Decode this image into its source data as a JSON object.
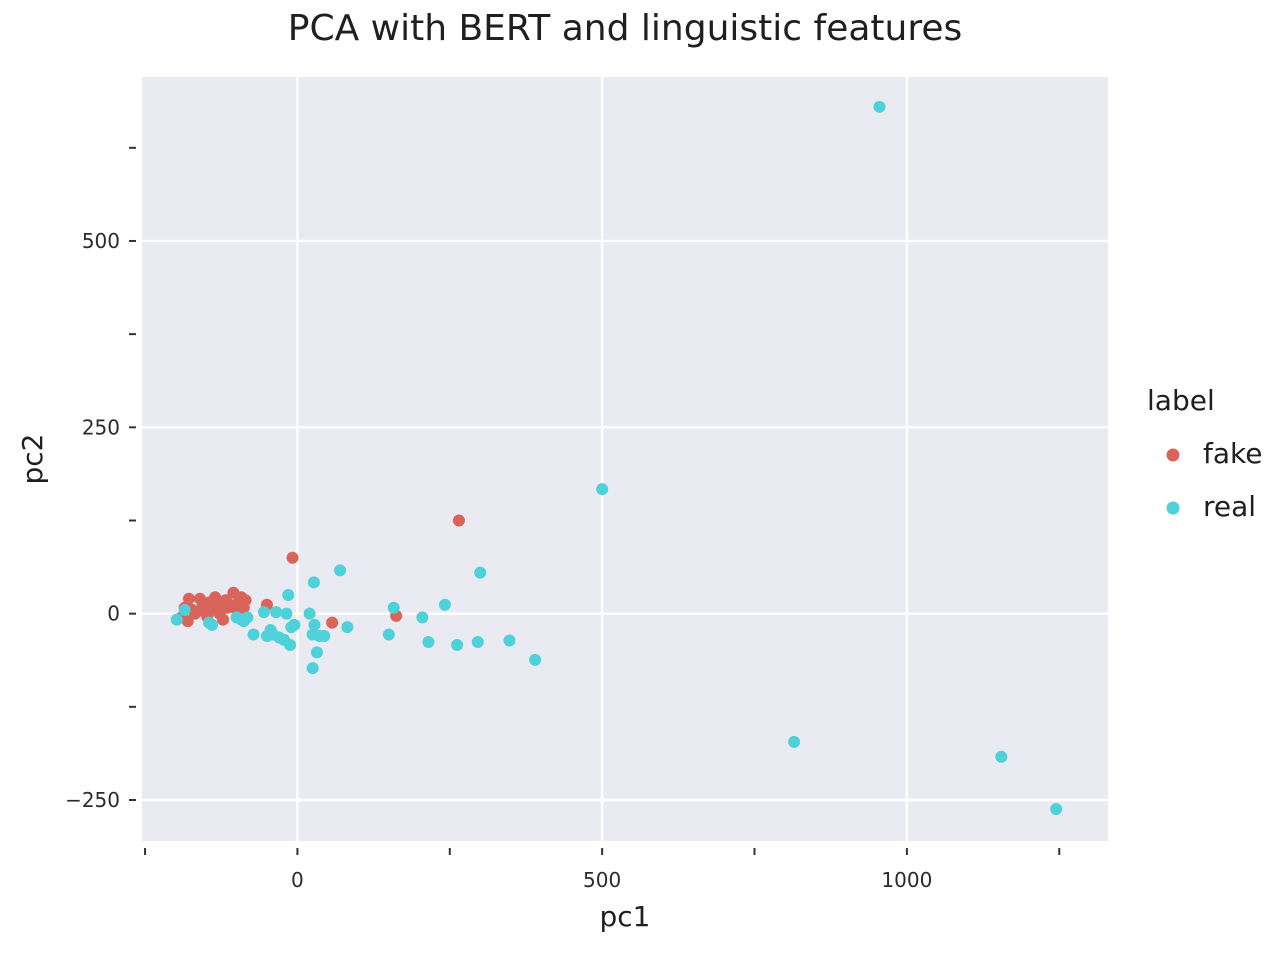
{
  "chart_data": {
    "type": "scatter",
    "title": "PCA with BERT and linguistic features",
    "xlabel": "pc1",
    "ylabel": "pc2",
    "xlim": [
      -255,
      1330
    ],
    "ylim": [
      -305,
      720
    ],
    "x_major_ticks": [
      0,
      500,
      1000
    ],
    "x_minor_ticks": [
      -250,
      250,
      750,
      1250
    ],
    "y_major_ticks": [
      -250,
      0,
      250,
      500
    ],
    "y_minor_ticks": [
      -125,
      125,
      375,
      625
    ],
    "grid": true,
    "legend": {
      "title": "label",
      "placement": "right"
    },
    "colors": {
      "fake": "#d9645a",
      "real": "#4fd1d9",
      "panel": "#eaeaf2",
      "grid": "#ffffff"
    },
    "series": [
      {
        "name": "fake",
        "color": "#d9645a",
        "points": [
          [
            -190,
            -5
          ],
          [
            -185,
            8
          ],
          [
            -180,
            -10
          ],
          [
            -178,
            20
          ],
          [
            -172,
            5
          ],
          [
            -168,
            0
          ],
          [
            -160,
            20
          ],
          [
            -155,
            12
          ],
          [
            -152,
            2
          ],
          [
            -148,
            -4
          ],
          [
            -145,
            15
          ],
          [
            -140,
            5
          ],
          [
            -135,
            22
          ],
          [
            -132,
            10
          ],
          [
            -128,
            0
          ],
          [
            -125,
            15
          ],
          [
            -122,
            -8
          ],
          [
            -118,
            18
          ],
          [
            -115,
            8
          ],
          [
            -110,
            12
          ],
          [
            -105,
            28
          ],
          [
            -100,
            5
          ],
          [
            -96,
            15
          ],
          [
            -92,
            22
          ],
          [
            -88,
            8
          ],
          [
            -85,
            18
          ],
          [
            -50,
            12
          ],
          [
            -8,
            75
          ],
          [
            57,
            -12
          ],
          [
            162,
            -3
          ],
          [
            265,
            125
          ]
        ]
      },
      {
        "name": "real",
        "color": "#4fd1d9",
        "points": [
          [
            -198,
            -8
          ],
          [
            -185,
            5
          ],
          [
            -145,
            -12
          ],
          [
            -140,
            -15
          ],
          [
            -100,
            -5
          ],
          [
            -92,
            -8
          ],
          [
            -88,
            -10
          ],
          [
            -82,
            -5
          ],
          [
            -72,
            -28
          ],
          [
            -55,
            2
          ],
          [
            -50,
            -30
          ],
          [
            -44,
            -22
          ],
          [
            -40,
            -28
          ],
          [
            -35,
            2
          ],
          [
            -30,
            -32
          ],
          [
            -22,
            -35
          ],
          [
            -18,
            0
          ],
          [
            -15,
            25
          ],
          [
            -12,
            -42
          ],
          [
            -10,
            -18
          ],
          [
            -5,
            -15
          ],
          [
            20,
            0
          ],
          [
            25,
            -28
          ],
          [
            25,
            -73
          ],
          [
            27,
            42
          ],
          [
            28,
            -15
          ],
          [
            32,
            -52
          ],
          [
            36,
            -30
          ],
          [
            44,
            -30
          ],
          [
            70,
            58
          ],
          [
            82,
            -18
          ],
          [
            150,
            -28
          ],
          [
            158,
            8
          ],
          [
            205,
            -5
          ],
          [
            215,
            -38
          ],
          [
            242,
            12
          ],
          [
            262,
            -42
          ],
          [
            296,
            -38
          ],
          [
            300,
            55
          ],
          [
            348,
            -36
          ],
          [
            390,
            -62
          ],
          [
            500,
            167
          ],
          [
            815,
            -172
          ],
          [
            955,
            680
          ],
          [
            1155,
            -192
          ],
          [
            1245,
            -262
          ]
        ]
      }
    ]
  }
}
